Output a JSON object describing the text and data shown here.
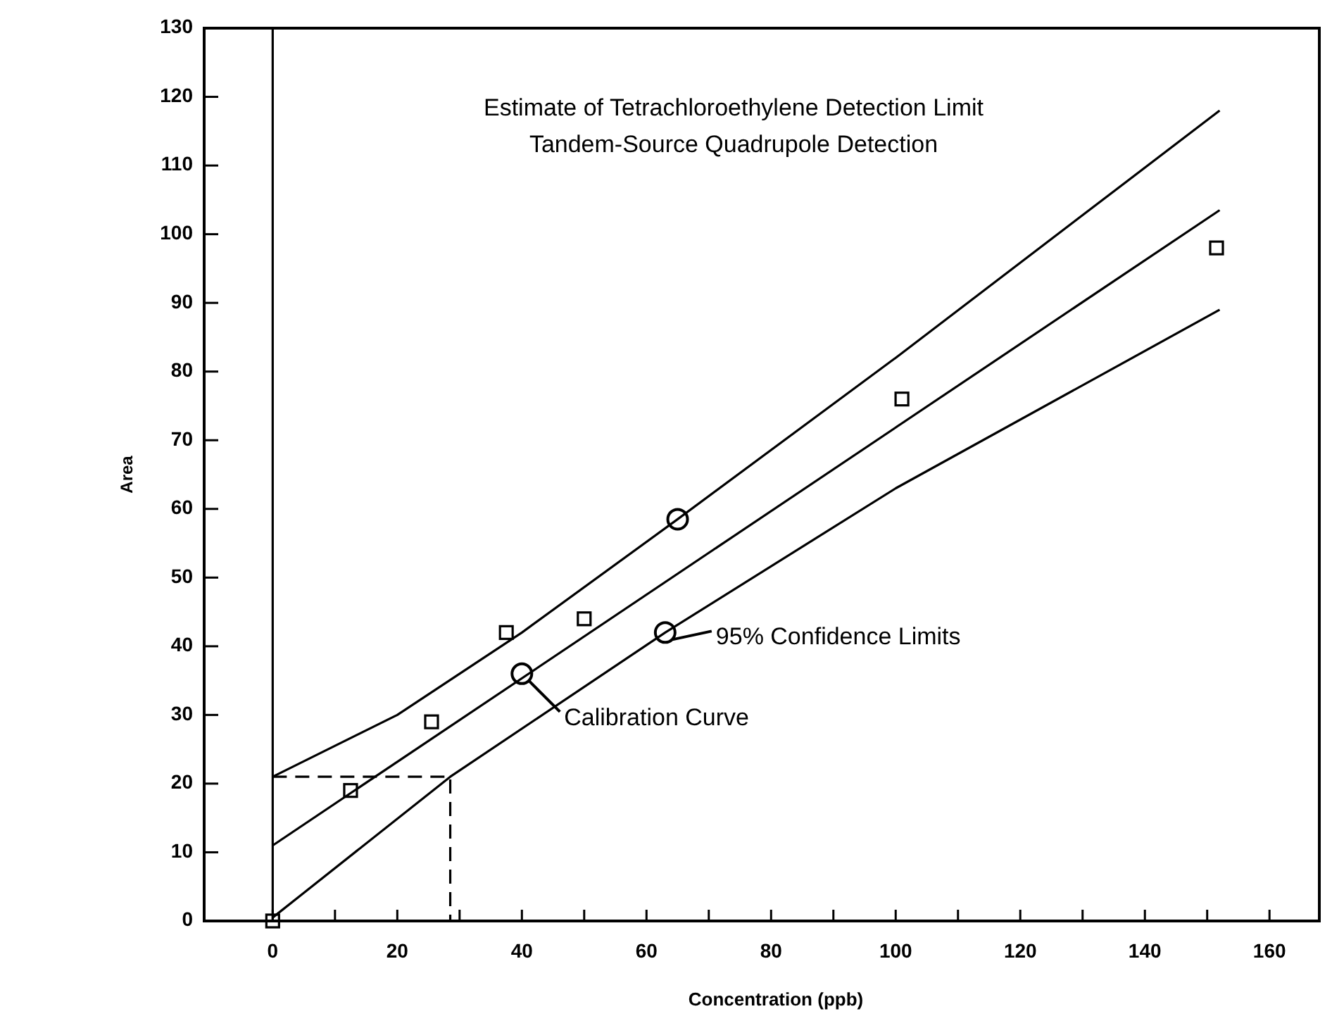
{
  "chart_data": {
    "type": "scatter",
    "title": "Estimate of Tetrachloroethylene Detection Limit",
    "subtitle": "Tandem-Source Quadrupole Detection",
    "xlabel": "Concentration (ppb)",
    "ylabel": "Area",
    "xlim": [
      -11,
      168
    ],
    "ylim": [
      0,
      130
    ],
    "xticks": [
      0,
      {
        "value": 10,
        "label": null
      },
      20,
      {
        "value": 30,
        "label": null
      },
      40,
      {
        "value": 50,
        "label": null
      },
      60,
      {
        "value": 70,
        "label": null
      },
      80,
      {
        "value": 90,
        "label": null
      },
      100,
      {
        "value": 110,
        "label": null
      },
      120,
      {
        "value": 130,
        "label": null
      },
      140,
      {
        "value": 150,
        "label": null
      },
      160
    ],
    "yticks": [
      0,
      10,
      20,
      30,
      40,
      50,
      60,
      70,
      80,
      90,
      100,
      110,
      120,
      130
    ],
    "grid": false,
    "series": [
      {
        "marker": "square",
        "color": "#000000",
        "x": [
          0,
          12.5,
          25.5,
          37.5,
          50,
          101,
          151.5
        ],
        "values": [
          0,
          19,
          29,
          42,
          44,
          76,
          98
        ]
      },
      {
        "type": "line",
        "marker": "none",
        "line_style": "solid",
        "color": "#000000",
        "x": [
          0,
          152
        ],
        "values": [
          11,
          103.5
        ]
      },
      {
        "type": "line",
        "marker": "none",
        "line_style": "solid",
        "color": "#000000",
        "x": [
          0,
          20,
          40,
          65,
          100,
          152
        ],
        "values": [
          21,
          30,
          42,
          58.5,
          82,
          118
        ]
      },
      {
        "type": "line",
        "marker": "none",
        "line_style": "solid",
        "color": "#000000",
        "x": [
          0,
          28.5,
          63,
          100,
          152
        ],
        "values": [
          0.5,
          21,
          42,
          63,
          89
        ]
      },
      {
        "type": "line",
        "marker": "none",
        "line_style": "dashed",
        "color": "#000000",
        "x": [
          0,
          28.5,
          28.5
        ],
        "values": [
          21,
          21,
          0
        ]
      },
      {
        "marker": "circle",
        "color": "#000000",
        "x": [
          40,
          65,
          63
        ],
        "values": [
          36,
          58.5,
          42
        ]
      }
    ],
    "ref_lines": [
      {
        "axis": "x",
        "value": 0,
        "color": "#000000"
      }
    ],
    "annotations": [
      {
        "text": "Calibration Curve",
        "x": 40,
        "y": 36
      },
      {
        "text": "95% Confidence Limits",
        "x": 63,
        "y": 42
      }
    ]
  }
}
